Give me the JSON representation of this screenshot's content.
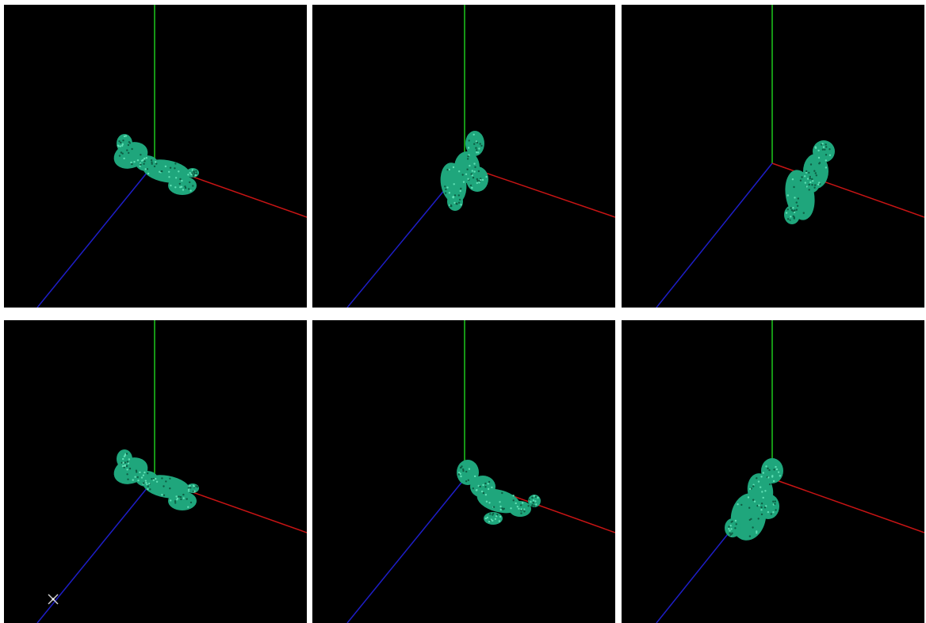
{
  "colors": {
    "background": "#000000",
    "gutter": "#ffffff",
    "x_axis": "#c81414",
    "y_axis": "#1ec81e",
    "z_axis": "#1e1ec8",
    "model_fill": "#1fa67c",
    "model_highlight": "#5fe0b4",
    "model_shadow": "#0e5e44"
  },
  "viewports": [
    {
      "id": "view-1",
      "model": "dragon-model",
      "pose": "facing-left",
      "cursor": false
    },
    {
      "id": "view-2",
      "model": "dragon-model",
      "pose": "upright-rotated",
      "cursor": false
    },
    {
      "id": "view-3",
      "model": "dragon-model",
      "pose": "side-profile",
      "cursor": false
    },
    {
      "id": "view-4",
      "model": "dragon-model",
      "pose": "facing-left",
      "cursor": true
    },
    {
      "id": "view-5",
      "model": "dragon-model",
      "pose": "elongated-right",
      "cursor": false
    },
    {
      "id": "view-6",
      "model": "dragon-model",
      "pose": "upright-coiled",
      "cursor": false
    }
  ],
  "cursor_icon": "move-cursor-icon"
}
